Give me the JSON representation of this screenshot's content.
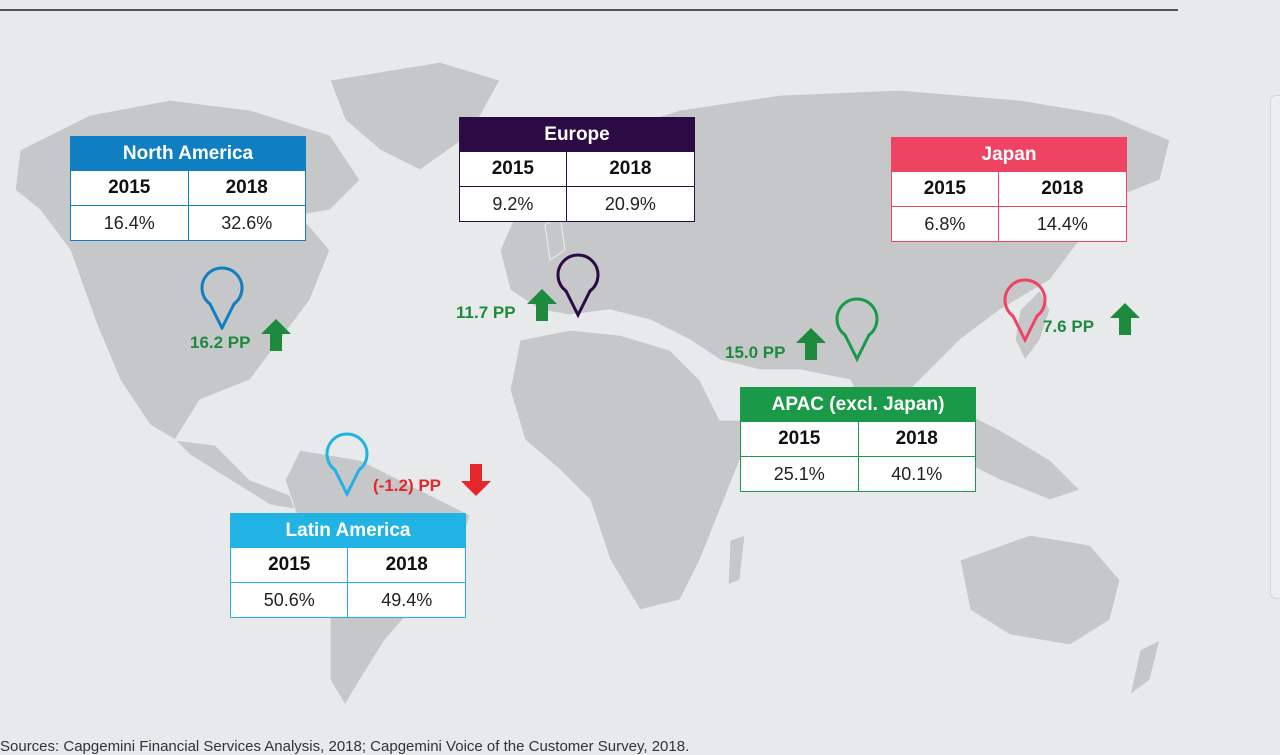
{
  "regions": {
    "north_america": {
      "title": "North America",
      "year1": "2015",
      "year2": "2018",
      "val1": "16.4%",
      "val2": "32.6%",
      "change": "16.2 PP",
      "direction": "up",
      "color": "#0f7fc1"
    },
    "europe": {
      "title": "Europe",
      "year1": "2015",
      "year2": "2018",
      "val1": "9.2%",
      "val2": "20.9%",
      "change": "11.7 PP",
      "direction": "up",
      "color": "#2c0a43"
    },
    "japan": {
      "title": "Japan",
      "year1": "2015",
      "year2": "2018",
      "val1": "6.8%",
      "val2": "14.4%",
      "change": "7.6 PP",
      "direction": "up",
      "color": "#ef4363"
    },
    "apac": {
      "title": "APAC (excl. Japan)",
      "year1": "2015",
      "year2": "2018",
      "val1": "25.1%",
      "val2": "40.1%",
      "change": "15.0 PP",
      "direction": "up",
      "color": "#1a9a48"
    },
    "latin_america": {
      "title": "Latin America",
      "year1": "2015",
      "year2": "2018",
      "val1": "50.6%",
      "val2": "49.4%",
      "change": "(-1.2) PP",
      "direction": "down",
      "color": "#20b3e4"
    }
  },
  "colors": {
    "up_arrow": "#1e8a3e",
    "down_arrow": "#e5262b",
    "land": "#c6c7c9",
    "background": "#e8e9eb"
  },
  "source": "Sources: Capgemini Financial Services Analysis, 2018; Capgemini Voice of the Customer Survey, 2018."
}
